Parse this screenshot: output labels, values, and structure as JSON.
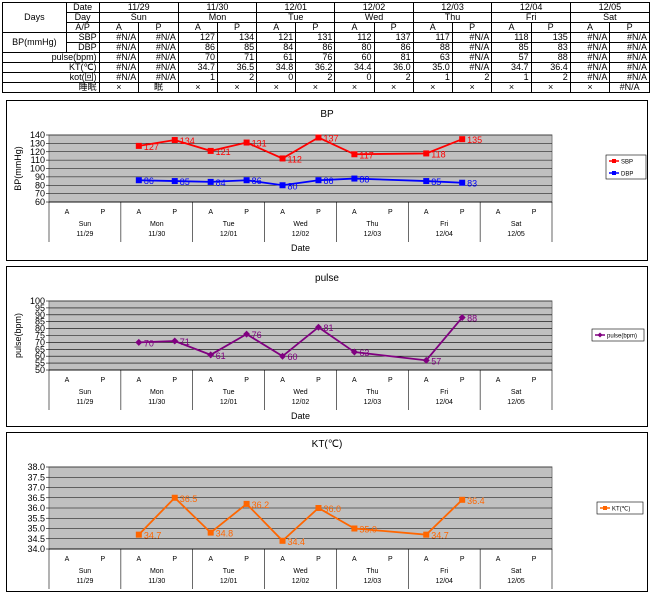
{
  "table": {
    "days_label": "Days",
    "bp_label": "BP(mmHg)",
    "row_labels": {
      "date": "Date",
      "day": "Day",
      "ap": "A/P",
      "sbp": "SBP",
      "dbp": "DBP",
      "pulse": "pulse(bpm)",
      "kt": "KT(℃)",
      "kot": "kot(回)",
      "sleep": "睡眠"
    },
    "dates": [
      "11/29",
      "11/30",
      "12/01",
      "12/02",
      "12/03",
      "12/04",
      "12/05"
    ],
    "weekdays": [
      "Sun",
      "Mon",
      "Tue",
      "Wed",
      "Thu",
      "Fri",
      "Sat"
    ],
    "ap": [
      "A",
      "P"
    ],
    "rows": {
      "sbp": [
        "#N/A",
        "#N/A",
        "127",
        "134",
        "121",
        "131",
        "112",
        "137",
        "117",
        "#N/A",
        "118",
        "135",
        "#N/A",
        "#N/A"
      ],
      "dbp": [
        "#N/A",
        "#N/A",
        "86",
        "85",
        "84",
        "86",
        "80",
        "86",
        "88",
        "#N/A",
        "85",
        "83",
        "#N/A",
        "#N/A"
      ],
      "pulse": [
        "#N/A",
        "#N/A",
        "70",
        "71",
        "61",
        "76",
        "60",
        "81",
        "63",
        "#N/A",
        "57",
        "88",
        "#N/A",
        "#N/A"
      ],
      "kt": [
        "#N/A",
        "#N/A",
        "34.7",
        "36.5",
        "34.8",
        "36.2",
        "34.4",
        "36.0",
        "35.0",
        "#N/A",
        "34.7",
        "36.4",
        "#N/A",
        "#N/A"
      ],
      "kot": [
        "#N/A",
        "#N/A",
        "1",
        "2",
        "0",
        "2",
        "0",
        "2",
        "1",
        "2",
        "1",
        "2",
        "#N/A",
        "#N/A"
      ],
      "sleep": [
        "×",
        "眠",
        "×",
        "×",
        "×",
        "×",
        "×",
        "×",
        "×",
        "×",
        "×",
        "×",
        "×",
        "#N/A"
      ]
    }
  },
  "chart_data": [
    {
      "type": "line",
      "title": "BP",
      "ylabel": "BP(mmHg)",
      "xlabel": "Date",
      "ylim": [
        60,
        140
      ],
      "yticks": [
        60,
        70,
        80,
        90,
        100,
        110,
        120,
        130,
        140
      ],
      "ytick_labels": [
        "60",
        "70",
        "80",
        "90",
        "100",
        "110",
        "120",
        "130",
        "140"
      ],
      "x_ap": [
        "A",
        "P",
        "A",
        "P",
        "A",
        "P",
        "A",
        "P",
        "A",
        "P",
        "A",
        "P",
        "A",
        "P"
      ],
      "x_days": [
        "Sun",
        "Mon",
        "Tue",
        "Wed",
        "Thu",
        "Fri",
        "Sat"
      ],
      "x_dates": [
        "11/29",
        "11/30",
        "12/01",
        "12/02",
        "12/03",
        "12/04",
        "12/05"
      ],
      "grid": true,
      "legend_position": "right",
      "series": [
        {
          "name": "SBP",
          "color": "#ff0000",
          "marker": "square",
          "values": [
            null,
            null,
            127,
            134,
            121,
            131,
            112,
            137,
            117,
            null,
            118,
            135,
            null,
            null
          ]
        },
        {
          "name": "DBP",
          "color": "#0000ff",
          "marker": "square",
          "values": [
            null,
            null,
            86,
            85,
            84,
            86,
            80,
            86,
            88,
            null,
            85,
            83,
            null,
            null
          ]
        }
      ]
    },
    {
      "type": "line",
      "title": "pulse",
      "ylabel": "pulse(bpm)",
      "xlabel": "Date",
      "ylim": [
        50,
        100
      ],
      "yticks": [
        50,
        55,
        60,
        65,
        70,
        75,
        80,
        85,
        90,
        95,
        100
      ],
      "ytick_labels": [
        "50",
        "55",
        "60",
        "65",
        "70",
        "75",
        "80",
        "85",
        "90",
        "95",
        "100"
      ],
      "x_ap": [
        "A",
        "P",
        "A",
        "P",
        "A",
        "P",
        "A",
        "P",
        "A",
        "P",
        "A",
        "P",
        "A",
        "P"
      ],
      "x_days": [
        "Sun",
        "Mon",
        "Tue",
        "Wed",
        "Thu",
        "Fri",
        "Sat"
      ],
      "x_dates": [
        "11/29",
        "11/30",
        "12/01",
        "12/02",
        "12/03",
        "12/04",
        "12/05"
      ],
      "grid": true,
      "legend_position": "right",
      "series": [
        {
          "name": "pulse(bpm)",
          "color": "#800080",
          "marker": "diamond",
          "values": [
            null,
            null,
            70,
            71,
            61,
            76,
            60,
            81,
            63,
            null,
            57,
            88,
            null,
            null
          ]
        }
      ]
    },
    {
      "type": "line",
      "title": "KT(℃)",
      "ylabel": "",
      "xlabel": "",
      "ylim": [
        34.0,
        38.0
      ],
      "yticks": [
        34.0,
        34.5,
        35.0,
        35.5,
        36.0,
        36.5,
        37.0,
        37.5,
        38.0
      ],
      "ytick_labels": [
        "34.0",
        "34.5",
        "35.0",
        "35.5",
        "36.0",
        "36.5",
        "37.0",
        "37.5",
        "38.0"
      ],
      "x_ap": [
        "A",
        "P",
        "A",
        "P",
        "A",
        "P",
        "A",
        "P",
        "A",
        "P",
        "A",
        "P",
        "A",
        "P"
      ],
      "x_days": [
        "Sun",
        "Mon",
        "Tue",
        "Wed",
        "Thu",
        "Fri",
        "Sat"
      ],
      "x_dates": [
        "11/29",
        "11/30",
        "12/01",
        "12/02",
        "12/03",
        "12/04",
        "12/05"
      ],
      "grid": true,
      "legend_position": "right",
      "series": [
        {
          "name": "KT(℃)",
          "color": "#ff6600",
          "marker": "square",
          "values": [
            null,
            null,
            34.7,
            36.5,
            34.8,
            36.2,
            34.4,
            36.0,
            35.0,
            null,
            34.7,
            36.4,
            null,
            null
          ],
          "labels": [
            null,
            null,
            "34.7",
            "36.5",
            "34.8",
            "36.2",
            "34.4",
            "36.0",
            "35.0",
            null,
            "34.7",
            "36.4",
            null,
            null
          ]
        }
      ]
    }
  ]
}
